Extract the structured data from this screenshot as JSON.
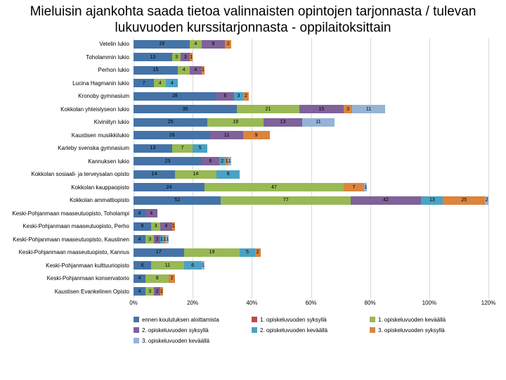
{
  "title": "Mieluisin ajankohta saada tietoa valinnaisten opintojen tarjonnasta / tulevan lukuvuoden kurssitarjonnasta - oppilaitoksittain",
  "chart": {
    "xmax": 120,
    "xtick_step": 20,
    "x_ticks": [
      "0%",
      "20%",
      "40%",
      "60%",
      "80%",
      "100%",
      "120%"
    ],
    "grid_color": "#d9d9d9",
    "background": "#ffffff",
    "series_colors": [
      "#4573a7",
      "#bf4b48",
      "#98b954",
      "#7e6299",
      "#4aa2c4",
      "#db843d",
      "#95b3d7"
    ],
    "legend": [
      "ennen koulutuksen aloittamista",
      "1. opiskeluvuoden syksyllä",
      "1. opiskeluvuoden keväällä",
      "2. opiskeluvuoden syksyllä",
      "2. opiskeluvuoden keväällä",
      "3. opiskeluvuoden syksyllä",
      "3. opiskeluvuoden keväällä"
    ],
    "rows": [
      {
        "label": "Vetelin lukio",
        "v": [
          19,
          0,
          4,
          8,
          0,
          2,
          0
        ]
      },
      {
        "label": "Toholammin lukio",
        "v": [
          13,
          0,
          3,
          3,
          0,
          1,
          0
        ]
      },
      {
        "label": "Perhon lukio",
        "v": [
          15,
          0,
          4,
          4,
          0,
          1,
          0
        ]
      },
      {
        "label": "Lucina Hagmanin lukio",
        "v": [
          7,
          0,
          4,
          0,
          4,
          0,
          0
        ]
      },
      {
        "label": "Kronoby gymnasium",
        "v": [
          28,
          0,
          0,
          6,
          3,
          2,
          0
        ]
      },
      {
        "label": "Kokkolan yhteislyseon lukio",
        "v": [
          35,
          0,
          21,
          15,
          0,
          3,
          11
        ]
      },
      {
        "label": "Kiviniityn lukio",
        "v": [
          25,
          0,
          19,
          13,
          0,
          0,
          11
        ]
      },
      {
        "label": "Kaustisen musiikkilukio",
        "v": [
          26,
          0,
          0,
          11,
          0,
          9,
          0
        ]
      },
      {
        "label": "Karleby svenska gymnasium",
        "v": [
          13,
          0,
          7,
          0,
          5,
          0,
          0
        ]
      },
      {
        "label": "Kannuksen lukio",
        "v": [
          23,
          0,
          0,
          6,
          2,
          1,
          1
        ]
      },
      {
        "label": "Kokkolan sosiaali- ja terveysalan opisto",
        "v": [
          14,
          0,
          14,
          0,
          8,
          0,
          0
        ]
      },
      {
        "label": "Kokkolan kauppaopisto",
        "v": [
          24,
          0,
          47,
          0,
          0,
          7,
          1
        ]
      },
      {
        "label": "Kokkolan ammattiopisto",
        "v": [
          52,
          0,
          77,
          42,
          13,
          25,
          2
        ]
      },
      {
        "label": "Keski-Pohjanmaan maaseutuopisto, Toholampi",
        "v": [
          4,
          0,
          0,
          4,
          0,
          0,
          0
        ]
      },
      {
        "label": "Keski-Pohjanmaan maaseutuopisto, Perho",
        "v": [
          6,
          0,
          3,
          4,
          0,
          1,
          0
        ]
      },
      {
        "label": "Keski-Pohjanmaan maaseutuopisto, Kaustinen",
        "v": [
          4,
          0,
          3,
          2,
          1,
          1,
          1
        ]
      },
      {
        "label": "Keski-Pohjanmaan maaseutuopisto, Kannus",
        "v": [
          17,
          0,
          19,
          0,
          5,
          2,
          0
        ]
      },
      {
        "label": "Keski-Pohjanmaan kulttuuriopisto",
        "v": [
          6,
          0,
          11,
          0,
          6,
          0,
          1
        ]
      },
      {
        "label": "Keski-Pohjanmaan konservatorio",
        "v": [
          4,
          0,
          8,
          0,
          0,
          2,
          0
        ]
      },
      {
        "label": "Kaustisen Evankelinen Opisto",
        "v": [
          4,
          0,
          3,
          2,
          0,
          1,
          0
        ]
      }
    ]
  }
}
